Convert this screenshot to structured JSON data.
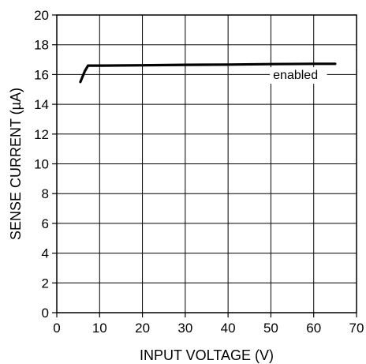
{
  "chart_data": {
    "type": "line",
    "xlabel": "INPUT VOLTAGE (V)",
    "ylabel": "SENSE CURRENT (µA)",
    "xlim": [
      0,
      70
    ],
    "ylim": [
      0,
      20
    ],
    "xticks": [
      0,
      10,
      20,
      30,
      40,
      50,
      60,
      70
    ],
    "yticks": [
      0,
      2,
      4,
      6,
      8,
      10,
      12,
      14,
      16,
      18,
      20
    ],
    "grid": true,
    "series": [
      {
        "name": "enabled",
        "x": [
          5.5,
          6.5,
          7.3,
          10,
          20,
          30,
          40,
          50,
          60,
          65
        ],
        "y": [
          15.5,
          16.2,
          16.6,
          16.6,
          16.62,
          16.65,
          16.67,
          16.7,
          16.72,
          16.72
        ]
      }
    ],
    "annotations": [
      {
        "text": "enabled",
        "x": 50.5,
        "y": 15.7
      }
    ]
  }
}
